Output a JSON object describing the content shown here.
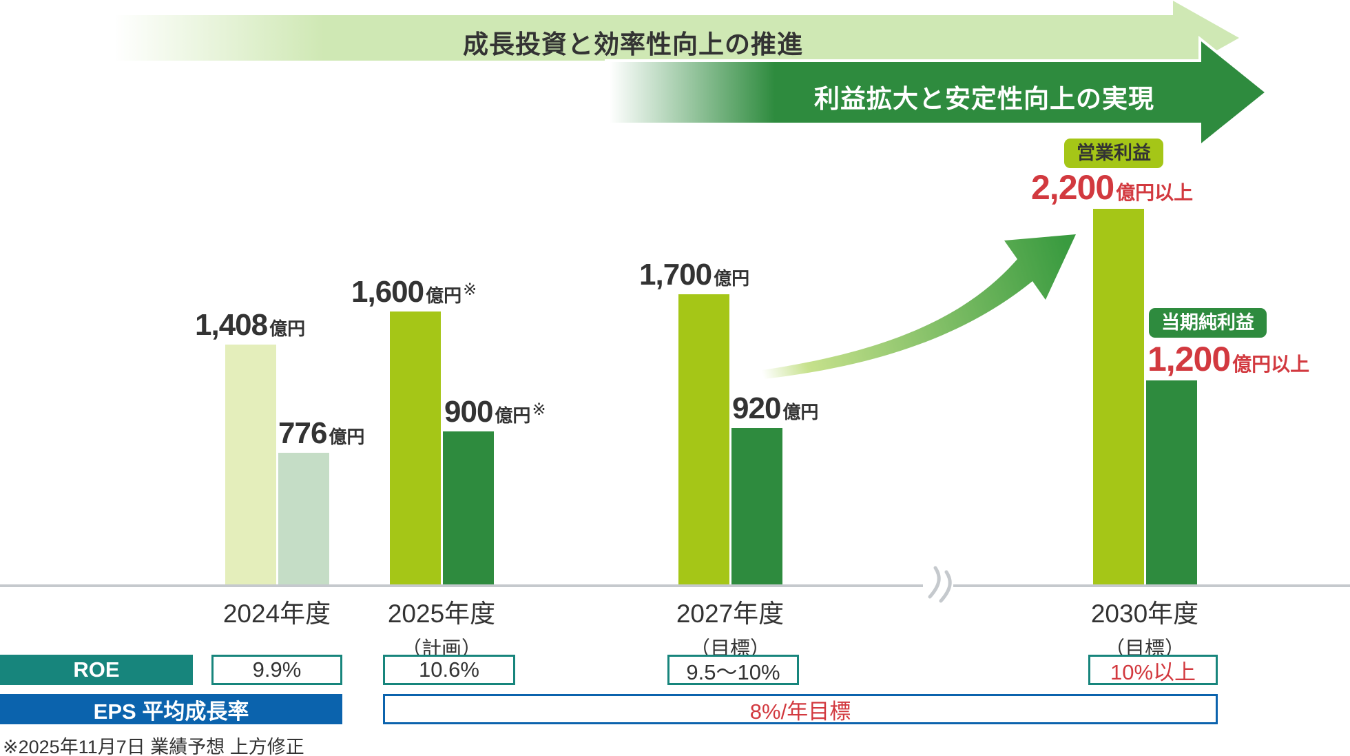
{
  "banners": [
    {
      "text": "成長投資と効率性向上の推進"
    },
    {
      "text": "利益拡大と安定性向上の実現"
    }
  ],
  "chart_data": {
    "type": "bar",
    "unit": "億円",
    "categories": [
      "2024年度",
      "2025年度",
      "2027年度",
      "2030年度"
    ],
    "category_notes": [
      "",
      "（計画）",
      "（目標）",
      "（目標）"
    ],
    "value_suffixes": [
      "億円",
      "億円",
      "億円",
      "億円以上"
    ],
    "value_refmarks": [
      "",
      "※",
      "",
      ""
    ],
    "series": [
      {
        "name": "営業利益",
        "values": [
          1408,
          1600,
          1700,
          2200
        ],
        "display_values": [
          "1,408",
          "1,600",
          "1,700",
          "2,200"
        ]
      },
      {
        "name": "当期純利益",
        "values": [
          776,
          900,
          920,
          1200
        ],
        "display_values": [
          "776",
          "900",
          "920",
          "1,200"
        ]
      }
    ],
    "ylim": [
      0,
      2400
    ],
    "grid": false,
    "legend_position": "badges-at-2030",
    "axis_break_after_category_index": 2
  },
  "table": {
    "roe": {
      "label": "ROE",
      "values": [
        "9.9%",
        "10.6%",
        "9.5〜10%",
        "10%以上"
      ]
    },
    "eps": {
      "label": "EPS 平均成長率",
      "value": "8%/年目標"
    }
  },
  "footnote": "※2025年11月7日 業績予想 上方修正",
  "colors": {
    "ink": "#333333",
    "red": "#d2393f",
    "teal": "#17857c",
    "blue": "#0b63ad",
    "operating": "#a5c617",
    "net": "#2e8b3e",
    "operating_fy2024": "#e4eebb",
    "net_fy2024": "#c5ddc6",
    "banner_light": "#cfe8b4",
    "banner_dark": "#2e8b3e",
    "swoosh_light": "#c6e18c",
    "swoosh_dark": "#3a9b40",
    "axis_gray": "#c5c9cd"
  }
}
